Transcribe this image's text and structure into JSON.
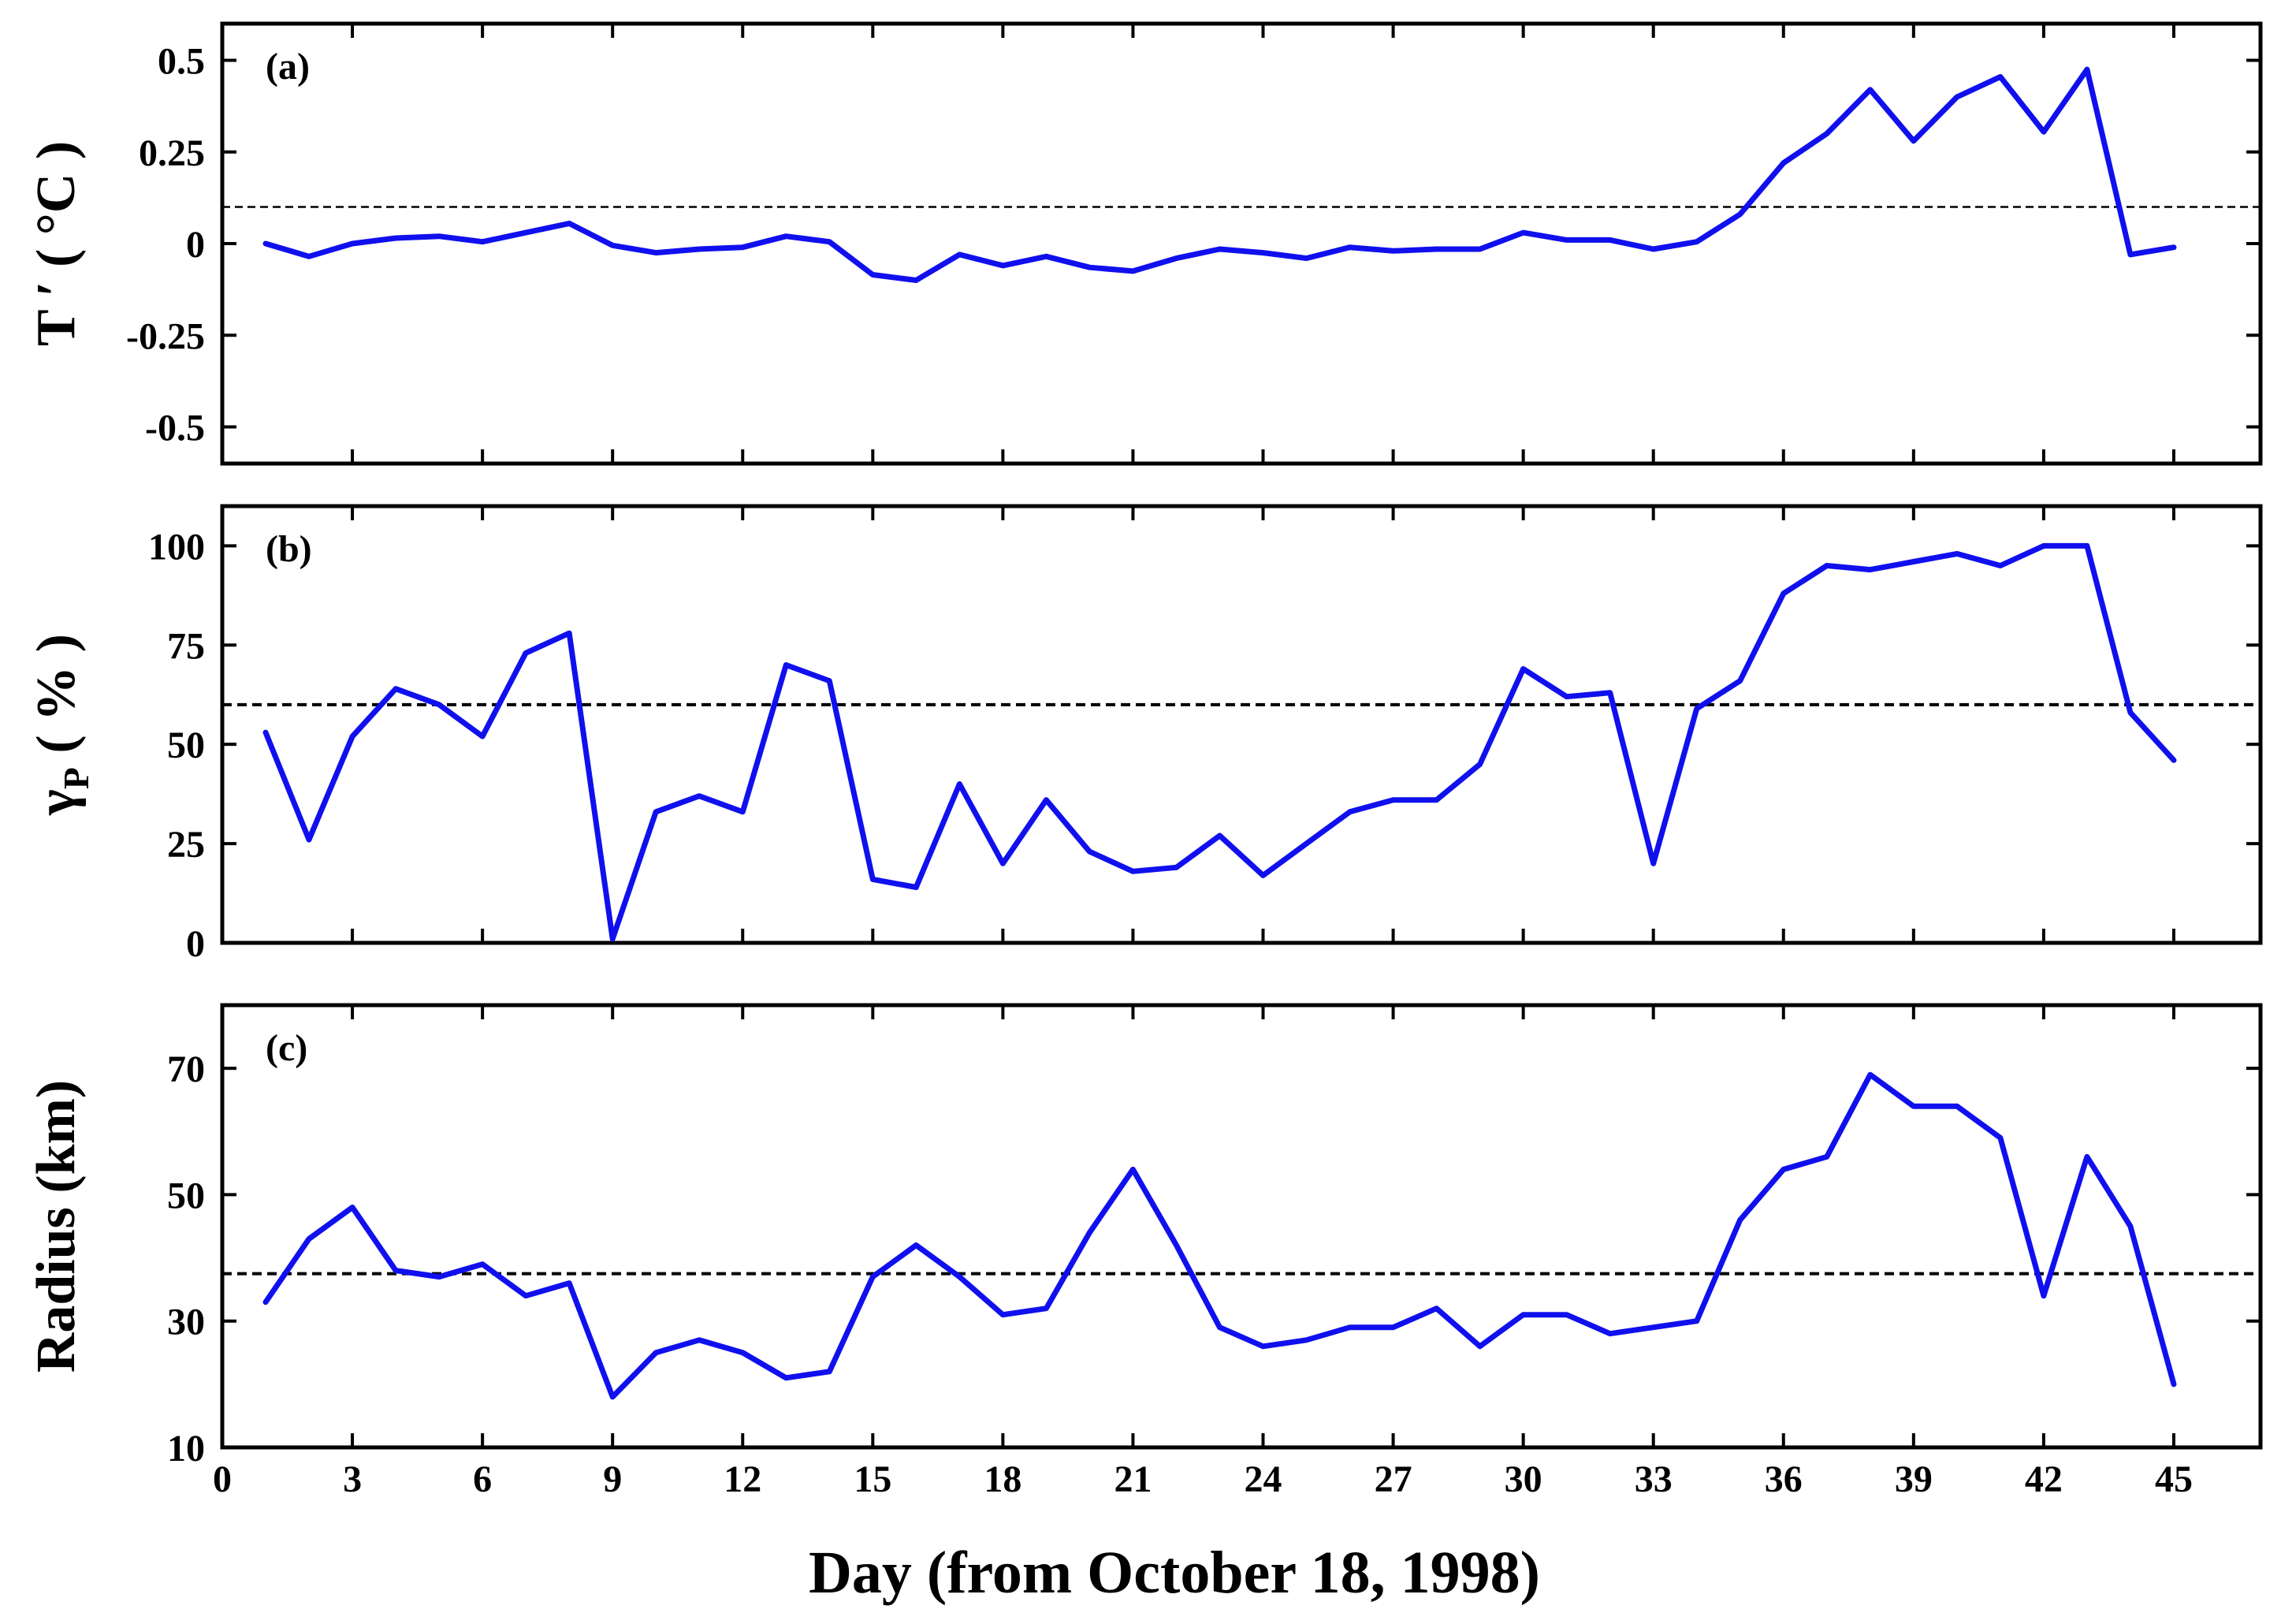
{
  "figure": {
    "xlabel": "Day (from October 18, 1998)"
  },
  "chart_data": [
    {
      "type": "line",
      "panel_label": "(a)",
      "ylabel": "T ′ ( °C )",
      "ylabel_parts": {
        "main": "T ′ ( °C )"
      },
      "x": [
        1,
        2,
        3,
        4,
        5,
        6,
        7,
        8,
        9,
        10,
        11,
        12,
        13,
        14,
        15,
        16,
        17,
        18,
        19,
        20,
        21,
        22,
        23,
        24,
        25,
        26,
        27,
        28,
        29,
        30,
        31,
        32,
        33,
        34,
        35,
        36,
        37,
        38,
        39,
        40,
        41,
        42,
        43,
        44,
        45
      ],
      "values": [
        0.0,
        -0.035,
        0.0,
        0.015,
        0.02,
        0.005,
        0.03,
        0.055,
        -0.005,
        -0.025,
        -0.015,
        -0.01,
        0.02,
        0.005,
        -0.085,
        -0.1,
        -0.03,
        -0.06,
        -0.035,
        -0.065,
        -0.075,
        -0.04,
        -0.015,
        -0.025,
        -0.04,
        -0.01,
        -0.02,
        -0.015,
        -0.015,
        0.03,
        0.01,
        0.01,
        -0.015,
        0.005,
        0.08,
        0.22,
        0.3,
        0.42,
        0.28,
        0.4,
        0.455,
        0.305,
        0.475,
        -0.03,
        -0.01
      ],
      "threshold": 0.1,
      "ylim": [
        -0.6,
        0.6
      ],
      "yticks": [
        -0.5,
        -0.25,
        0,
        0.25,
        0.5
      ],
      "ytick_labels": [
        "-0.5",
        "-0.25",
        "0",
        "0.25",
        "0.5"
      ],
      "xlim": [
        0,
        47
      ],
      "color": "#1010ee"
    },
    {
      "type": "line",
      "panel_label": "(b)",
      "ylabel": "γP ( % )",
      "ylabel_parts": {
        "main": "γ",
        "sub": "P",
        "rest": " ( % )"
      },
      "x": [
        1,
        2,
        3,
        4,
        5,
        6,
        7,
        8,
        9,
        10,
        11,
        12,
        13,
        14,
        15,
        16,
        17,
        18,
        19,
        20,
        21,
        22,
        23,
        24,
        25,
        26,
        27,
        28,
        29,
        30,
        31,
        32,
        33,
        34,
        35,
        36,
        37,
        38,
        39,
        40,
        41,
        42,
        43,
        44,
        45
      ],
      "values": [
        53,
        26,
        52,
        64,
        60,
        52,
        73,
        78,
        1,
        33,
        37,
        33,
        70,
        66,
        16,
        14,
        40,
        20,
        36,
        23,
        18,
        19,
        27,
        17,
        25,
        33,
        36,
        36,
        45,
        69,
        62,
        63,
        20,
        59,
        66,
        88,
        95,
        94,
        96,
        98,
        95,
        100,
        100,
        58,
        46
      ],
      "threshold": 60,
      "ylim": [
        0,
        110
      ],
      "yticks": [
        0,
        25,
        50,
        75,
        100
      ],
      "ytick_labels": [
        "0",
        "25",
        "50",
        "75",
        "100"
      ],
      "xlim": [
        0,
        47
      ],
      "color": "#1010ee"
    },
    {
      "type": "line",
      "panel_label": "(c)",
      "ylabel": "Radius (km)",
      "ylabel_parts": {
        "main": "Radius (km)"
      },
      "x": [
        1,
        2,
        3,
        4,
        5,
        6,
        7,
        8,
        9,
        10,
        11,
        12,
        13,
        14,
        15,
        16,
        17,
        18,
        19,
        20,
        21,
        22,
        23,
        24,
        25,
        26,
        27,
        28,
        29,
        30,
        31,
        32,
        33,
        34,
        35,
        36,
        37,
        38,
        39,
        40,
        41,
        42,
        43,
        44,
        45
      ],
      "values": [
        33,
        43,
        48,
        38,
        37,
        39,
        34,
        36,
        18,
        25,
        27,
        25,
        21,
        22,
        37,
        42,
        37,
        31,
        32,
        44,
        54,
        42,
        29,
        26,
        27,
        29,
        29,
        32,
        26,
        31,
        31,
        28,
        29,
        30,
        46,
        54,
        56,
        69,
        64,
        64,
        59,
        34,
        56,
        45,
        20
      ],
      "threshold": 37.5,
      "ylim": [
        10,
        80
      ],
      "yticks": [
        10,
        30,
        50,
        70
      ],
      "ytick_labels": [
        "10",
        "30",
        "50",
        "70"
      ],
      "xlim": [
        0,
        47
      ],
      "xticks": [
        0,
        3,
        6,
        9,
        12,
        15,
        18,
        21,
        24,
        27,
        30,
        33,
        36,
        39,
        42,
        45
      ],
      "xtick_labels": [
        "0",
        "3",
        "6",
        "9",
        "12",
        "15",
        "18",
        "21",
        "24",
        "27",
        "30",
        "33",
        "36",
        "39",
        "42",
        "45"
      ],
      "color": "#1010ee"
    }
  ]
}
